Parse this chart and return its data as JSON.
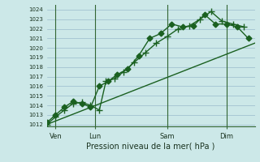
{
  "title": "Pression niveau de la mer( hPa )",
  "ylabel_values": [
    1012,
    1013,
    1014,
    1015,
    1016,
    1017,
    1018,
    1019,
    1020,
    1021,
    1022,
    1023,
    1024
  ],
  "ylim": [
    1011.8,
    1024.5
  ],
  "xlim": [
    0.0,
    9.5
  ],
  "xtick_positions": [
    0.4,
    2.2,
    5.5,
    8.2
  ],
  "xtick_labels": [
    "Ven",
    "Lun",
    "Sam",
    "Dim"
  ],
  "vline_positions": [
    0.4,
    2.2,
    5.5,
    8.2
  ],
  "bg_color": "#cce8e8",
  "grid_color": "#99bbcc",
  "line_color": "#1a6020",
  "line1_x": [
    0.0,
    0.4,
    0.8,
    1.2,
    1.6,
    2.0,
    2.4,
    2.7,
    3.1,
    3.5,
    4.0,
    4.5,
    5.0,
    5.5,
    6.0,
    6.5,
    7.0,
    7.5,
    8.0,
    8.5,
    9.0
  ],
  "line1_y": [
    1012.0,
    1012.8,
    1013.5,
    1014.2,
    1014.3,
    1014.0,
    1013.5,
    1016.5,
    1016.8,
    1017.5,
    1018.5,
    1019.5,
    1020.5,
    1021.2,
    1022.0,
    1022.3,
    1023.0,
    1023.8,
    1022.8,
    1022.5,
    1022.2
  ],
  "line2_x": [
    0.0,
    0.4,
    0.8,
    1.2,
    1.6,
    2.0,
    2.4,
    2.8,
    3.2,
    3.7,
    4.2,
    4.7,
    5.2,
    5.7,
    6.2,
    6.7,
    7.2,
    7.7,
    8.2,
    8.7,
    9.2
  ],
  "line2_y": [
    1012.2,
    1013.0,
    1013.8,
    1014.4,
    1014.2,
    1013.8,
    1016.0,
    1016.5,
    1017.2,
    1017.8,
    1019.2,
    1021.0,
    1021.5,
    1022.5,
    1022.2,
    1022.3,
    1023.5,
    1022.5,
    1022.5,
    1022.2,
    1021.0
  ],
  "line3_x": [
    0.0,
    9.5
  ],
  "line3_y": [
    1012.0,
    1020.5
  ],
  "marker_size": 3.5
}
